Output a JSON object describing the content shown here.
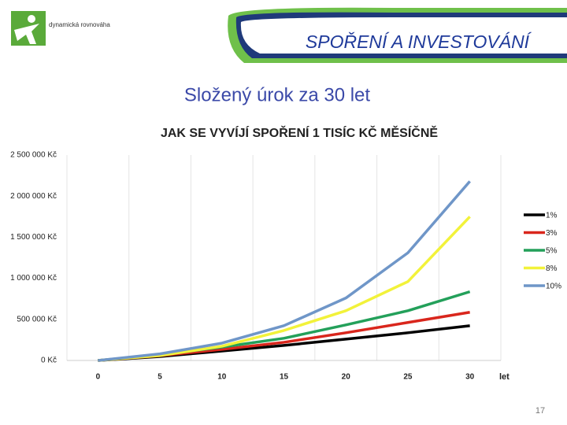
{
  "slide": {
    "logo": "dynamická rovnováha",
    "header": "SPOŘENÍ A INVESTOVÁNÍ",
    "subtitle": "Složený úrok za 30 let",
    "page_number": "17"
  },
  "chart_data": {
    "type": "line",
    "title": "JAK SE VYVÍJÍ SPOŘENÍ  1 TISÍC KČ MĚSÍČNĚ",
    "x_label": "let",
    "categories": [
      "0",
      "5",
      "10",
      "15",
      "20",
      "25",
      "30"
    ],
    "series": [
      {
        "name": "1%",
        "color": "#000000",
        "values": [
          0,
          48000,
          115000,
          183000,
          260000,
          337000,
          423000
        ]
      },
      {
        "name": "3%",
        "color": "#d9261c",
        "values": [
          0,
          58000,
          135000,
          221000,
          337000,
          462000,
          587000
        ]
      },
      {
        "name": "5%",
        "color": "#23a05a",
        "values": [
          0,
          67000,
          163000,
          270000,
          433000,
          605000,
          837000
        ]
      },
      {
        "name": "8%",
        "color": "#f2f23a",
        "values": [
          0,
          60000,
          173000,
          365000,
          605000,
          960000,
          1750000
        ]
      },
      {
        "name": "10%",
        "color": "#6f96c8",
        "values": [
          0,
          80000,
          211000,
          423000,
          760000,
          1310000,
          2180000
        ]
      }
    ],
    "ylim": [
      0,
      2500000
    ],
    "yticks": [
      {
        "value": 0,
        "label": "0 Kč"
      },
      {
        "value": 500000,
        "label": "500 000 Kč"
      },
      {
        "value": 1000000,
        "label": "1 000 000 Kč"
      },
      {
        "value": 1500000,
        "label": "1 500 000 Kč"
      },
      {
        "value": 2000000,
        "label": "2 000 000 Kč"
      },
      {
        "value": 2500000,
        "label": "2 500 000 Kč"
      }
    ],
    "legend": "right"
  }
}
